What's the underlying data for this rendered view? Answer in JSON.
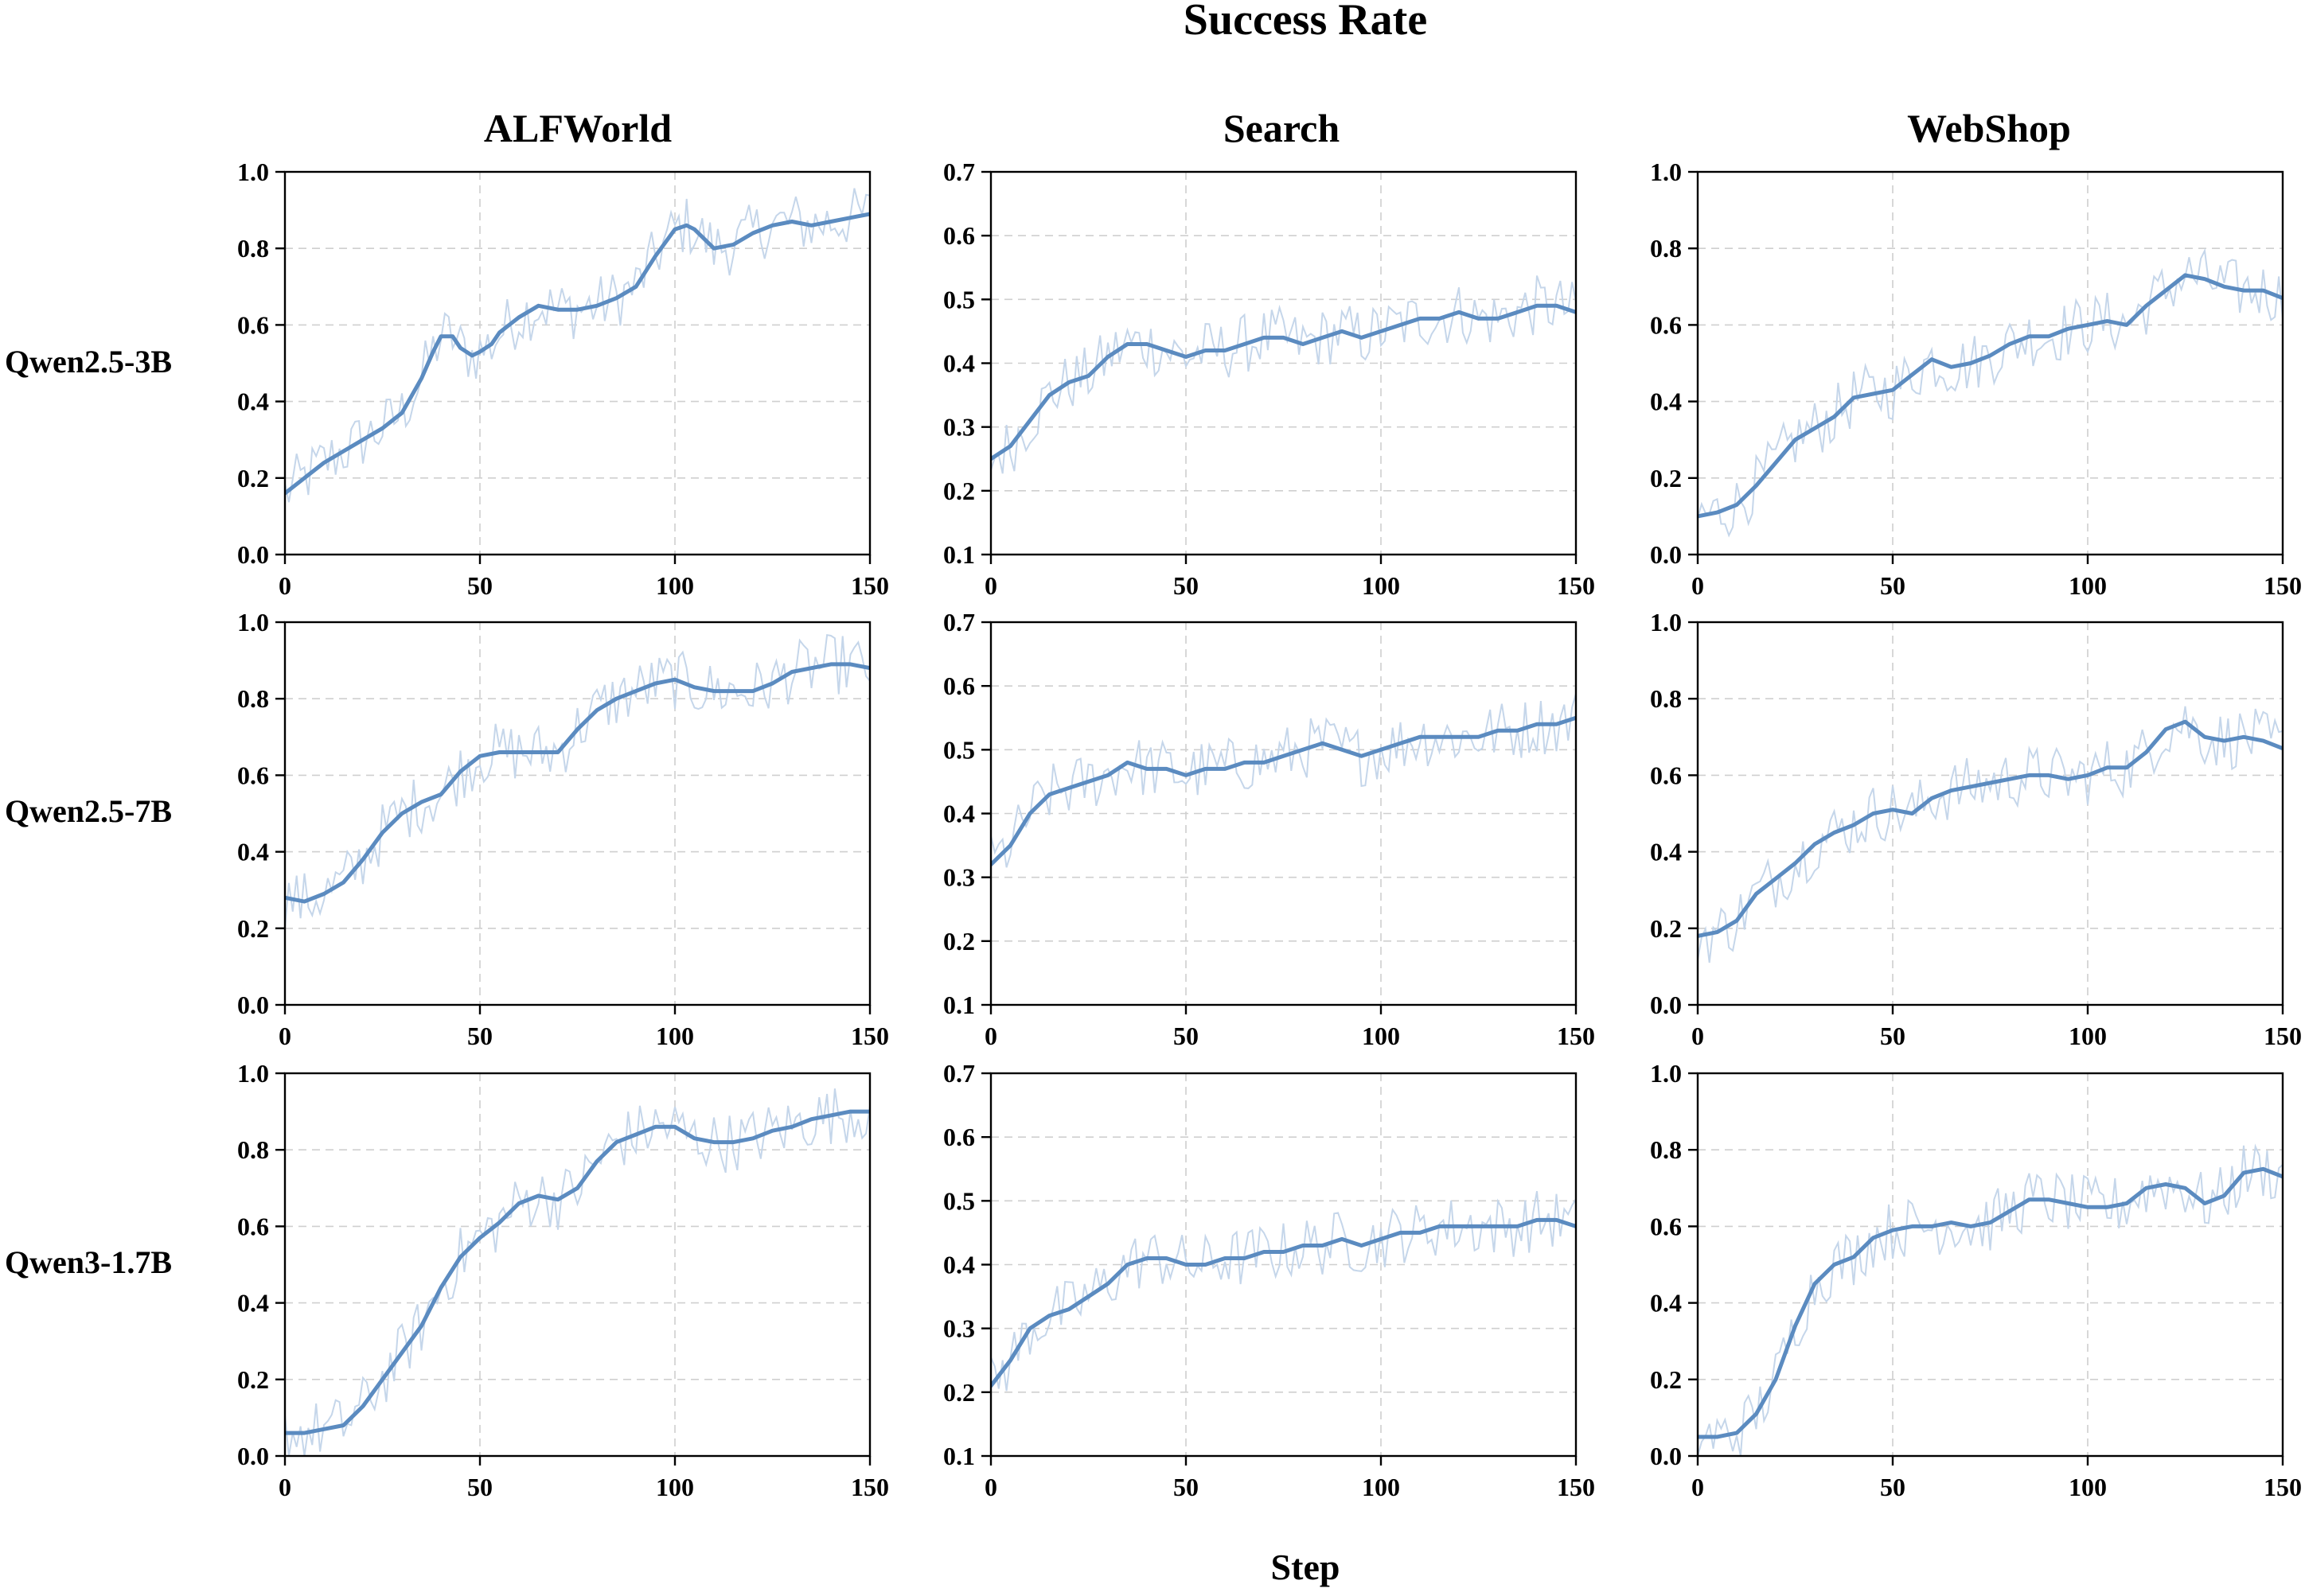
{
  "figure": {
    "title": "Success Rate",
    "xlabel": "Step",
    "columns": [
      "ALFWorld",
      "Search",
      "WebShop"
    ],
    "rows": [
      "Qwen2.5-3B",
      "Qwen2.5-7B",
      "Qwen3-1.7B"
    ]
  },
  "colors": {
    "line": "#5b8bc0",
    "raw": "#c5d6ea",
    "grid": "#cfcfcf"
  },
  "chart_data": [
    {
      "type": "line",
      "row": "Qwen2.5-3B",
      "column": "ALFWorld",
      "xlim": [
        0,
        150
      ],
      "ylim": [
        0,
        1
      ],
      "xticks": [
        0,
        50,
        100,
        150
      ],
      "yticks": [
        0.0,
        0.2,
        0.4,
        0.6,
        0.8,
        1.0
      ],
      "grid": true,
      "series": [
        {
          "style": "smoothed",
          "x": [
            0,
            5,
            10,
            15,
            20,
            25,
            30,
            35,
            38,
            40,
            43,
            45,
            48,
            50,
            53,
            55,
            60,
            65,
            70,
            75,
            80,
            85,
            90,
            95,
            100,
            103,
            105,
            110,
            115,
            120,
            125,
            130,
            135,
            140,
            145,
            150
          ],
          "y": [
            0.16,
            0.2,
            0.24,
            0.27,
            0.3,
            0.33,
            0.37,
            0.46,
            0.53,
            0.57,
            0.57,
            0.54,
            0.52,
            0.53,
            0.55,
            0.58,
            0.62,
            0.65,
            0.64,
            0.64,
            0.65,
            0.67,
            0.7,
            0.78,
            0.85,
            0.86,
            0.85,
            0.8,
            0.81,
            0.84,
            0.86,
            0.87,
            0.86,
            0.87,
            0.88,
            0.89
          ]
        }
      ]
    },
    {
      "type": "line",
      "row": "Qwen2.5-3B",
      "column": "Search",
      "xlim": [
        0,
        150
      ],
      "ylim": [
        0.1,
        0.7
      ],
      "xticks": [
        0,
        50,
        100,
        150
      ],
      "yticks": [
        0.1,
        0.2,
        0.3,
        0.4,
        0.5,
        0.6,
        0.7
      ],
      "grid": true,
      "series": [
        {
          "style": "smoothed",
          "x": [
            0,
            5,
            10,
            15,
            20,
            25,
            30,
            35,
            40,
            45,
            50,
            55,
            60,
            65,
            70,
            75,
            80,
            85,
            90,
            95,
            100,
            105,
            110,
            115,
            120,
            125,
            130,
            135,
            140,
            145,
            150
          ],
          "y": [
            0.25,
            0.27,
            0.31,
            0.35,
            0.37,
            0.38,
            0.41,
            0.43,
            0.43,
            0.42,
            0.41,
            0.42,
            0.42,
            0.43,
            0.44,
            0.44,
            0.43,
            0.44,
            0.45,
            0.44,
            0.45,
            0.46,
            0.47,
            0.47,
            0.48,
            0.47,
            0.47,
            0.48,
            0.49,
            0.49,
            0.48
          ]
        }
      ]
    },
    {
      "type": "line",
      "row": "Qwen2.5-3B",
      "column": "WebShop",
      "xlim": [
        0,
        150
      ],
      "ylim": [
        0,
        1
      ],
      "xticks": [
        0,
        50,
        100,
        150
      ],
      "yticks": [
        0.0,
        0.2,
        0.4,
        0.6,
        0.8,
        1.0
      ],
      "grid": true,
      "series": [
        {
          "style": "smoothed",
          "x": [
            0,
            5,
            10,
            15,
            20,
            25,
            30,
            35,
            40,
            45,
            50,
            55,
            60,
            65,
            70,
            75,
            80,
            85,
            90,
            95,
            100,
            105,
            110,
            115,
            120,
            125,
            130,
            135,
            140,
            145,
            150
          ],
          "y": [
            0.1,
            0.11,
            0.13,
            0.18,
            0.24,
            0.3,
            0.33,
            0.36,
            0.41,
            0.42,
            0.43,
            0.47,
            0.51,
            0.49,
            0.5,
            0.52,
            0.55,
            0.57,
            0.57,
            0.59,
            0.6,
            0.61,
            0.6,
            0.65,
            0.69,
            0.73,
            0.72,
            0.7,
            0.69,
            0.69,
            0.67
          ]
        }
      ]
    },
    {
      "type": "line",
      "row": "Qwen2.5-7B",
      "column": "ALFWorld",
      "xlim": [
        0,
        150
      ],
      "ylim": [
        0,
        1
      ],
      "xticks": [
        0,
        50,
        100,
        150
      ],
      "yticks": [
        0.0,
        0.2,
        0.4,
        0.6,
        0.8,
        1.0
      ],
      "grid": true,
      "series": [
        {
          "style": "smoothed",
          "x": [
            0,
            5,
            10,
            15,
            20,
            25,
            30,
            35,
            40,
            45,
            50,
            55,
            60,
            65,
            70,
            75,
            80,
            85,
            90,
            95,
            100,
            105,
            110,
            115,
            120,
            125,
            130,
            135,
            140,
            145,
            150
          ],
          "y": [
            0.28,
            0.27,
            0.29,
            0.32,
            0.38,
            0.45,
            0.5,
            0.53,
            0.55,
            0.61,
            0.65,
            0.66,
            0.66,
            0.66,
            0.66,
            0.72,
            0.77,
            0.8,
            0.82,
            0.84,
            0.85,
            0.83,
            0.82,
            0.82,
            0.82,
            0.84,
            0.87,
            0.88,
            0.89,
            0.89,
            0.88
          ]
        }
      ]
    },
    {
      "type": "line",
      "row": "Qwen2.5-7B",
      "column": "Search",
      "xlim": [
        0,
        150
      ],
      "ylim": [
        0.1,
        0.7
      ],
      "xticks": [
        0,
        50,
        100,
        150
      ],
      "yticks": [
        0.1,
        0.2,
        0.3,
        0.4,
        0.5,
        0.6,
        0.7
      ],
      "grid": true,
      "series": [
        {
          "style": "smoothed",
          "x": [
            0,
            5,
            10,
            15,
            20,
            25,
            30,
            35,
            40,
            45,
            50,
            55,
            60,
            65,
            70,
            75,
            80,
            85,
            90,
            95,
            100,
            105,
            110,
            115,
            120,
            125,
            130,
            135,
            140,
            145,
            150
          ],
          "y": [
            0.32,
            0.35,
            0.4,
            0.43,
            0.44,
            0.45,
            0.46,
            0.48,
            0.47,
            0.47,
            0.46,
            0.47,
            0.47,
            0.48,
            0.48,
            0.49,
            0.5,
            0.51,
            0.5,
            0.49,
            0.5,
            0.51,
            0.52,
            0.52,
            0.52,
            0.52,
            0.53,
            0.53,
            0.54,
            0.54,
            0.55
          ]
        }
      ]
    },
    {
      "type": "line",
      "row": "Qwen2.5-7B",
      "column": "WebShop",
      "xlim": [
        0,
        150
      ],
      "ylim": [
        0,
        1
      ],
      "xticks": [
        0,
        50,
        100,
        150
      ],
      "yticks": [
        0.0,
        0.2,
        0.4,
        0.6,
        0.8,
        1.0
      ],
      "grid": true,
      "series": [
        {
          "style": "smoothed",
          "x": [
            0,
            5,
            10,
            15,
            20,
            25,
            30,
            35,
            40,
            45,
            50,
            55,
            60,
            65,
            70,
            75,
            80,
            85,
            90,
            95,
            100,
            105,
            110,
            115,
            120,
            125,
            130,
            135,
            140,
            145,
            150
          ],
          "y": [
            0.18,
            0.19,
            0.22,
            0.29,
            0.33,
            0.37,
            0.42,
            0.45,
            0.47,
            0.5,
            0.51,
            0.5,
            0.54,
            0.56,
            0.57,
            0.58,
            0.59,
            0.6,
            0.6,
            0.59,
            0.6,
            0.62,
            0.62,
            0.66,
            0.72,
            0.74,
            0.7,
            0.69,
            0.7,
            0.69,
            0.67
          ]
        }
      ]
    },
    {
      "type": "line",
      "row": "Qwen3-1.7B",
      "column": "ALFWorld",
      "xlim": [
        0,
        150
      ],
      "ylim": [
        0,
        1
      ],
      "xticks": [
        0,
        50,
        100,
        150
      ],
      "yticks": [
        0.0,
        0.2,
        0.4,
        0.6,
        0.8,
        1.0
      ],
      "grid": true,
      "series": [
        {
          "style": "smoothed",
          "x": [
            0,
            5,
            10,
            15,
            20,
            25,
            30,
            35,
            40,
            45,
            50,
            55,
            60,
            65,
            70,
            75,
            80,
            85,
            90,
            95,
            100,
            105,
            110,
            115,
            120,
            125,
            130,
            135,
            140,
            145,
            150
          ],
          "y": [
            0.06,
            0.06,
            0.07,
            0.08,
            0.13,
            0.2,
            0.27,
            0.34,
            0.44,
            0.52,
            0.57,
            0.61,
            0.66,
            0.68,
            0.67,
            0.7,
            0.77,
            0.82,
            0.84,
            0.86,
            0.86,
            0.83,
            0.82,
            0.82,
            0.83,
            0.85,
            0.86,
            0.88,
            0.89,
            0.9,
            0.9
          ]
        }
      ]
    },
    {
      "type": "line",
      "row": "Qwen3-1.7B",
      "column": "Search",
      "xlim": [
        0,
        150
      ],
      "ylim": [
        0.1,
        0.7
      ],
      "xticks": [
        0,
        50,
        100,
        150
      ],
      "yticks": [
        0.1,
        0.2,
        0.3,
        0.4,
        0.5,
        0.6,
        0.7
      ],
      "grid": true,
      "series": [
        {
          "style": "smoothed",
          "x": [
            0,
            5,
            10,
            15,
            20,
            25,
            30,
            35,
            40,
            45,
            50,
            55,
            60,
            65,
            70,
            75,
            80,
            85,
            90,
            95,
            100,
            105,
            110,
            115,
            120,
            125,
            130,
            135,
            140,
            145,
            150
          ],
          "y": [
            0.21,
            0.25,
            0.3,
            0.32,
            0.33,
            0.35,
            0.37,
            0.4,
            0.41,
            0.41,
            0.4,
            0.4,
            0.41,
            0.41,
            0.42,
            0.42,
            0.43,
            0.43,
            0.44,
            0.43,
            0.44,
            0.45,
            0.45,
            0.46,
            0.46,
            0.46,
            0.46,
            0.46,
            0.47,
            0.47,
            0.46
          ]
        }
      ]
    },
    {
      "type": "line",
      "row": "Qwen3-1.7B",
      "column": "WebShop",
      "xlim": [
        0,
        150
      ],
      "ylim": [
        0,
        1
      ],
      "xticks": [
        0,
        50,
        100,
        150
      ],
      "yticks": [
        0.0,
        0.2,
        0.4,
        0.6,
        0.8,
        1.0
      ],
      "grid": true,
      "series": [
        {
          "style": "smoothed",
          "x": [
            0,
            5,
            10,
            15,
            20,
            25,
            30,
            35,
            40,
            45,
            50,
            55,
            60,
            65,
            70,
            75,
            80,
            85,
            90,
            95,
            100,
            105,
            110,
            115,
            120,
            125,
            130,
            135,
            140,
            145,
            150
          ],
          "y": [
            0.05,
            0.05,
            0.06,
            0.11,
            0.2,
            0.34,
            0.45,
            0.5,
            0.52,
            0.57,
            0.59,
            0.6,
            0.6,
            0.61,
            0.6,
            0.61,
            0.64,
            0.67,
            0.67,
            0.66,
            0.65,
            0.65,
            0.66,
            0.7,
            0.71,
            0.7,
            0.66,
            0.68,
            0.74,
            0.75,
            0.73
          ]
        }
      ]
    }
  ]
}
